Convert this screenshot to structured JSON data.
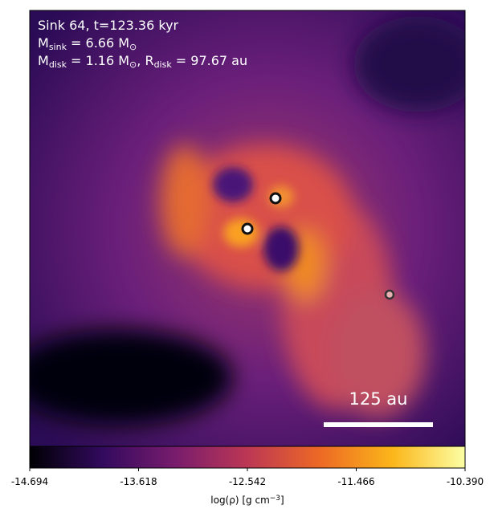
{
  "chart_data": {
    "type": "image",
    "annotation_lines": [
      [
        "Sink 64, t=123.36 kyr"
      ],
      [
        "M",
        "sink",
        " = 6.66 M",
        "⊙"
      ],
      [
        "M",
        "disk",
        " = 1.16 M",
        "⊙",
        ", R",
        "disk",
        " = 97.67 au"
      ]
    ],
    "scale_bar_label": "125 au",
    "colorbar_label": [
      "log(ρ) [g cm",
      "−3",
      "]"
    ],
    "clim": [
      -14.694,
      -10.39
    ],
    "colorbar_ticks": [
      -14.694,
      -13.618,
      -12.542,
      -11.466,
      {
        "value": -10.39,
        "label": "-10.390"
      }
    ],
    "colormap": [
      "#000004",
      "#320a5e",
      "#781c6d",
      "#bc3754",
      "#ed6925",
      "#fbb61a",
      "#fcffa4"
    ]
  }
}
